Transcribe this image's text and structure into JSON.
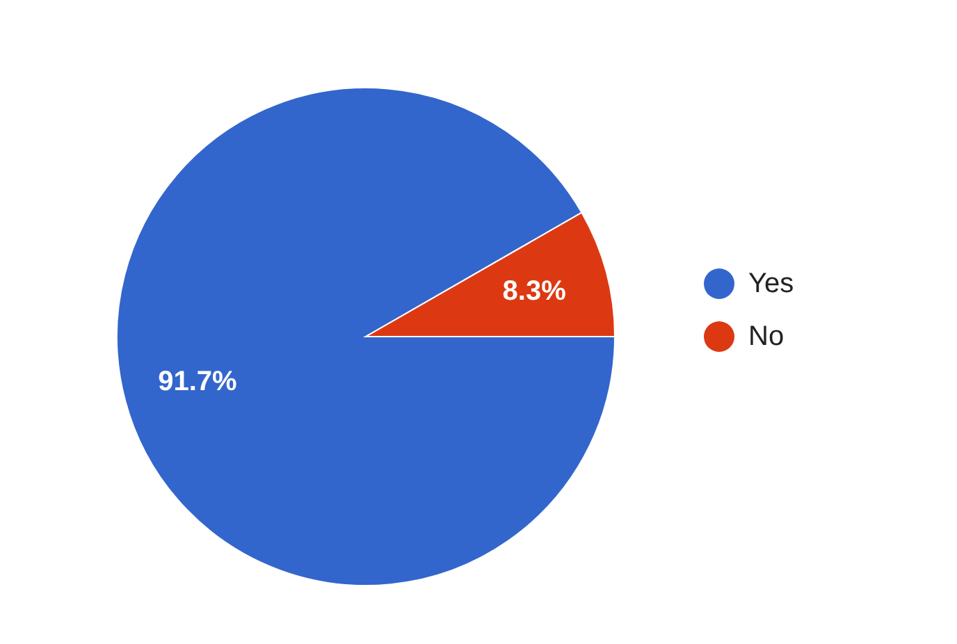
{
  "chart_data": {
    "type": "pie",
    "categories": [
      "Yes",
      "No"
    ],
    "values": [
      91.7,
      8.3
    ],
    "colors": [
      "#3366cc",
      "#dc3912"
    ],
    "value_labels": [
      "91.7%",
      "8.3%"
    ],
    "legend": "right"
  }
}
